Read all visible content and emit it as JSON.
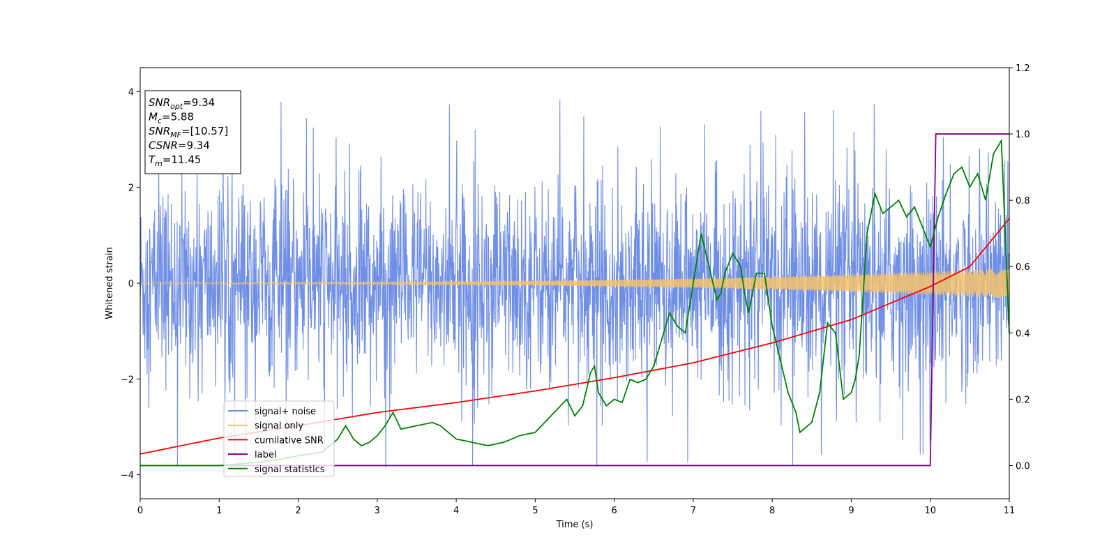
{
  "chart_data": {
    "type": "line",
    "xlabel": "Time (s)",
    "ylabel": "Whitened strain",
    "xlim": [
      0,
      11
    ],
    "ylim": [
      -4.5,
      4.5
    ],
    "y2lim": [
      -0.1,
      1.2
    ],
    "x_ticks": [
      0,
      1,
      2,
      3,
      4,
      5,
      6,
      7,
      8,
      9,
      10,
      11
    ],
    "y_ticks": [
      4,
      2,
      0,
      -2,
      -4
    ],
    "y_tick_labels": [
      "4",
      "2",
      "0",
      "−2",
      "−4"
    ],
    "y2_ticks": [
      1.2,
      1.0,
      0.8,
      0.6,
      0.4,
      0.2,
      0.0
    ],
    "y2_tick_labels": [
      "1.2",
      "1.0",
      "0.8",
      "0.6",
      "0.4",
      "0.2",
      "0.0"
    ],
    "grid": false,
    "legend_position": "lower-left",
    "annotation": {
      "lines": [
        {
          "base": "SNR",
          "sub": "opt",
          "value": "=9.34"
        },
        {
          "base": "M",
          "sub": "c",
          "value": "=5.88"
        },
        {
          "base": "SNR",
          "sub": "MF",
          "value": "=[10.57]"
        },
        {
          "base": "CSNR",
          "sub": "",
          "value": "=9.34"
        },
        {
          "base": "T",
          "sub": "m",
          "value": "=11.45"
        }
      ]
    },
    "series": [
      {
        "name": "signal+ noise",
        "color": "#6f8ee6",
        "axis": "left",
        "kind": "noise",
        "typical_amplitude": 1.6,
        "peak_amplitude": 3.85
      },
      {
        "name": "signal only",
        "color": "#f5c26b",
        "axis": "left",
        "kind": "chirp",
        "amplitude_start": 0.02,
        "amplitude_end": 0.32
      },
      {
        "name": "cumilative SNR",
        "color": "#ff0000",
        "axis": "right",
        "x": [
          0,
          1,
          2,
          3,
          4,
          5,
          6,
          7,
          8,
          9,
          10,
          10.5,
          11
        ],
        "y": [
          0.035,
          0.083,
          0.12,
          0.16,
          0.19,
          0.225,
          0.265,
          0.31,
          0.37,
          0.44,
          0.54,
          0.6,
          0.745
        ]
      },
      {
        "name": "label",
        "color": "#800080",
        "axis": "right",
        "x": [
          0,
          10.0,
          10.07,
          11
        ],
        "y": [
          0.0,
          0.0,
          1.0,
          1.0
        ]
      },
      {
        "name": "signal statistics",
        "color": "#008000",
        "axis": "right",
        "x": [
          0,
          1,
          1.5,
          1.8,
          2.0,
          2.3,
          2.5,
          2.6,
          2.7,
          2.8,
          2.9,
          3.0,
          3.1,
          3.2,
          3.3,
          3.5,
          3.7,
          3.8,
          4.0,
          4.2,
          4.4,
          4.6,
          4.8,
          5.0,
          5.2,
          5.4,
          5.5,
          5.6,
          5.7,
          5.75,
          5.8,
          5.9,
          6.0,
          6.1,
          6.2,
          6.3,
          6.4,
          6.5,
          6.6,
          6.7,
          6.8,
          6.9,
          7.0,
          7.1,
          7.2,
          7.3,
          7.35,
          7.4,
          7.5,
          7.6,
          7.65,
          7.7,
          7.8,
          7.9,
          8.0,
          8.1,
          8.2,
          8.3,
          8.35,
          8.4,
          8.5,
          8.6,
          8.7,
          8.8,
          8.9,
          9.0,
          9.05,
          9.1,
          9.2,
          9.3,
          9.4,
          9.5,
          9.6,
          9.7,
          9.8,
          9.9,
          10.0,
          10.1,
          10.2,
          10.3,
          10.4,
          10.5,
          10.6,
          10.7,
          10.8,
          10.9,
          11.0
        ],
        "y": [
          0.0,
          0.0,
          0.01,
          0.02,
          0.03,
          0.04,
          0.08,
          0.12,
          0.08,
          0.06,
          0.07,
          0.09,
          0.12,
          0.16,
          0.11,
          0.12,
          0.13,
          0.12,
          0.08,
          0.07,
          0.06,
          0.07,
          0.09,
          0.1,
          0.15,
          0.2,
          0.15,
          0.18,
          0.28,
          0.3,
          0.22,
          0.18,
          0.2,
          0.19,
          0.26,
          0.25,
          0.26,
          0.3,
          0.38,
          0.46,
          0.42,
          0.4,
          0.55,
          0.7,
          0.6,
          0.5,
          0.52,
          0.58,
          0.64,
          0.6,
          0.52,
          0.46,
          0.58,
          0.58,
          0.42,
          0.32,
          0.22,
          0.16,
          0.1,
          0.11,
          0.13,
          0.22,
          0.43,
          0.4,
          0.2,
          0.22,
          0.26,
          0.33,
          0.7,
          0.82,
          0.76,
          0.78,
          0.8,
          0.75,
          0.78,
          0.72,
          0.66,
          0.75,
          0.82,
          0.88,
          0.9,
          0.84,
          0.88,
          0.8,
          0.94,
          0.98,
          0.4
        ]
      }
    ]
  }
}
